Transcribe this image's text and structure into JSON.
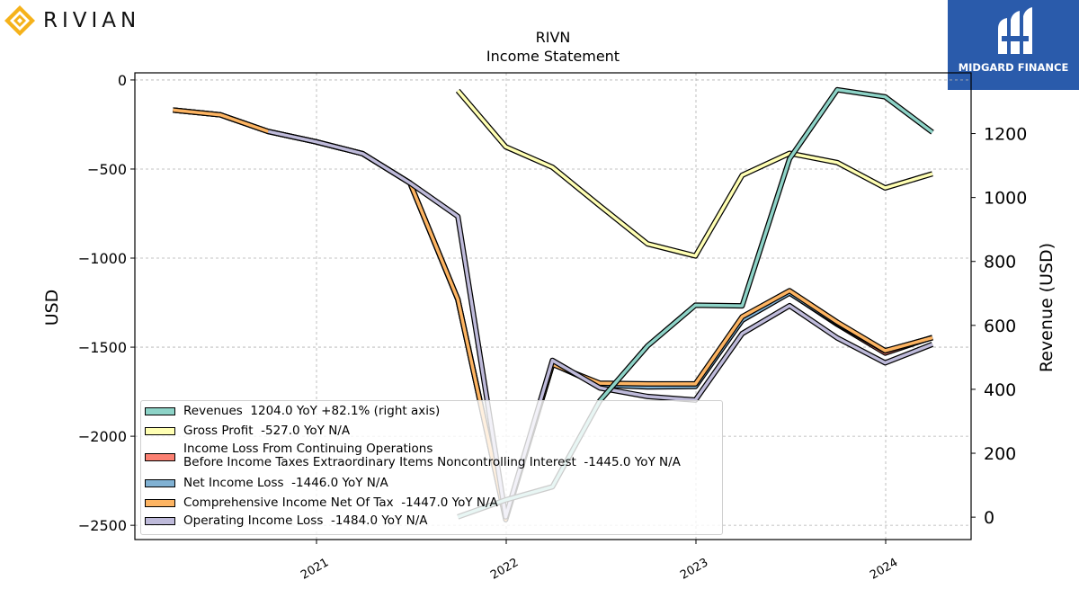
{
  "brand": {
    "left_logo": "RIVIAN",
    "right_logo": "MIDGARD FINANCE"
  },
  "chart_data": {
    "type": "line",
    "title": "RIVN",
    "subtitle": "Income Statement",
    "ylabel": "USD",
    "y2label": "Revenue (USD)",
    "ylim": [
      -2580,
      40
    ],
    "y2lim": [
      -70,
      1390
    ],
    "yticks": [
      0,
      -500,
      -1000,
      -1500,
      -2000,
      -2500
    ],
    "y2ticks": [
      0,
      200,
      400,
      600,
      800,
      1000,
      1200
    ],
    "xtick_labels": [
      "2021",
      "2022",
      "2023",
      "2024"
    ],
    "grid": true,
    "legend_position": "lower-center",
    "x_dates": [
      "2020-03-31",
      "2020-06-30",
      "2020-09-30",
      "2020-12-31",
      "2021-03-31",
      "2021-06-30",
      "2021-09-30",
      "2021-12-31",
      "2022-03-31",
      "2022-06-30",
      "2022-09-30",
      "2022-12-31",
      "2023-03-31",
      "2023-06-30",
      "2023-09-30",
      "2023-12-31",
      "2024-03-31"
    ],
    "series": [
      {
        "name": "Revenues",
        "legend": "Revenues  1204.0 YoY +82.1% (right axis)",
        "axis": "right",
        "color": "#8dd3c7",
        "values": [
          null,
          null,
          null,
          null,
          null,
          null,
          1,
          54,
          95,
          364,
          536,
          663,
          661,
          1121,
          1337,
          1315,
          1204
        ]
      },
      {
        "name": "Gross Profit",
        "legend": "Gross Profit  -527.0 YoY N/A",
        "axis": "left",
        "color": "#ffffb3",
        "values": [
          null,
          null,
          null,
          null,
          null,
          null,
          -60,
          -375,
          -490,
          -706,
          -920,
          -988,
          -535,
          -412,
          -464,
          -606,
          -527
        ]
      },
      {
        "name": "Income Loss From Continuing Operations Before Income Taxes Extraordinary Items Noncontrolling Interest",
        "legend": "Income Loss From Continuing Operations\nBefore Income Taxes Extraordinary Items Noncontrolling Interest  -1445.0 YoY N/A",
        "axis": "left",
        "color": "#fb8072",
        "values": [
          -169,
          -196,
          -289,
          -347,
          -414,
          -579,
          -1231,
          -2461,
          -1594,
          -1713,
          -1720,
          -1718,
          -1348,
          -1195,
          -1372,
          -1533,
          -1445
        ]
      },
      {
        "name": "Net Income Loss",
        "legend": "Net Income Loss  -1446.0 YoY N/A",
        "axis": "left",
        "color": "#80b1d3",
        "values": [
          -169,
          -196,
          -289,
          -347,
          -414,
          -579,
          -1233,
          -2461,
          -1593,
          -1712,
          -1723,
          -1721,
          -1349,
          -1196,
          -1367,
          -1522,
          -1446
        ]
      },
      {
        "name": "Comprehensive Income Net Of Tax",
        "legend": "Comprehensive Income Net Of Tax  -1447.0 YoY N/A",
        "axis": "left",
        "color": "#fdb462",
        "values": [
          -169,
          -196,
          -289,
          -347,
          -414,
          -579,
          -1231,
          -2468,
          -1596,
          -1702,
          -1706,
          -1706,
          -1329,
          -1183,
          -1360,
          -1520,
          -1447
        ]
      },
      {
        "name": "Operating Income Loss",
        "legend": "Operating Income Loss  -1484.0 YoY N/A",
        "axis": "left",
        "color": "#bebada",
        "values": [
          null,
          null,
          -289,
          -347,
          -414,
          -579,
          -766,
          -2453,
          -1574,
          -1729,
          -1777,
          -1797,
          -1424,
          -1267,
          -1448,
          -1588,
          -1484
        ]
      }
    ]
  }
}
